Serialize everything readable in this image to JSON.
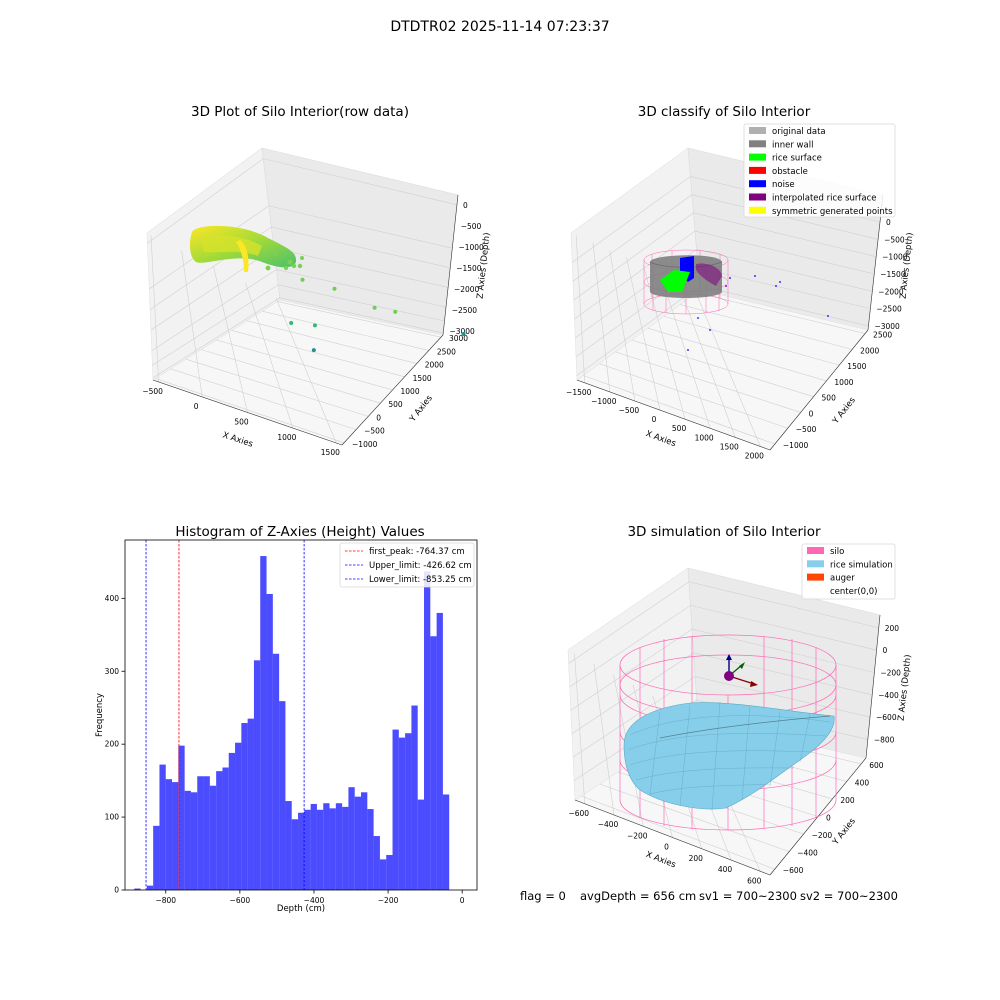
{
  "figure": {
    "suptitle": "DTDTR02 2025-11-14 07:23:37",
    "footer": {
      "flag": "flag = 0",
      "avg": "avgDepth = 656 cm",
      "sv1": "sv1 = 700~2300",
      "sv2": "sv2 = 700~2300"
    }
  },
  "chart_data": [
    {
      "type": "scatter",
      "title": "3D Plot of Silo Interior(row data)",
      "xlabel": "X Axies",
      "ylabel": "Y Axies",
      "zlabel": "Z Axies (Depth)",
      "x_ticks": [
        "−500",
        "0",
        "500",
        "1000",
        "1500"
      ],
      "y_ticks": [
        "−1000",
        "−500",
        "0",
        "500",
        "1000",
        "1500",
        "2000",
        "2500",
        "3000"
      ],
      "z_ticks": [
        "0",
        "−500",
        "−1000",
        "−1500",
        "−2000",
        "−2500",
        "−3000"
      ],
      "colormap": "viridis",
      "outlier_points": [
        {
          "x": 300,
          "y": 200,
          "z": -1000
        },
        {
          "x": 500,
          "y": 700,
          "z": -1300
        },
        {
          "x": 950,
          "y": 800,
          "z": -1500
        },
        {
          "x": 1050,
          "y": 1200,
          "z": -1700
        },
        {
          "x": 200,
          "y": 100,
          "z": -2300
        },
        {
          "x": 300,
          "y": 600,
          "z": -2500
        },
        {
          "x": 400,
          "y": 300,
          "z": -3000
        },
        {
          "x": 1200,
          "y": 3000,
          "z": -3000
        }
      ]
    },
    {
      "type": "scatter",
      "title": "3D classify of Silo Interior",
      "xlabel": "X Axies",
      "ylabel": "Y Axies",
      "zlabel": "Z Axies (Depth)",
      "x_ticks": [
        "−1500",
        "−1000",
        "−500",
        "0",
        "500",
        "1000",
        "1500",
        "2000"
      ],
      "y_ticks": [
        "−1000",
        "−500",
        "0",
        "500",
        "1000",
        "1500",
        "2000",
        "2500"
      ],
      "z_ticks": [
        "0",
        "−500",
        "−1000",
        "−1500",
        "−2000",
        "−2500",
        "−3000"
      ],
      "legend": [
        {
          "label": "original data",
          "color": "#b0b0b0"
        },
        {
          "label": "inner wall",
          "color": "#808080"
        },
        {
          "label": "rice surface",
          "color": "#00ff00"
        },
        {
          "label": "obstacle",
          "color": "#ff0000"
        },
        {
          "label": "noise",
          "color": "#0000ff"
        },
        {
          "label": "interpolated rice surface",
          "color": "#800080"
        },
        {
          "label": "symmetric generated points",
          "color": "#ffff00"
        }
      ]
    },
    {
      "type": "bar",
      "title": "Histogram of Z-Axies (Height) Values",
      "xlabel": "Depth (cm)",
      "ylabel": "Frequency",
      "xlim": [
        -910,
        40
      ],
      "ylim": [
        0,
        480
      ],
      "x_ticks": [
        -800,
        -600,
        -400,
        -200,
        0
      ],
      "y_ticks": [
        0,
        100,
        200,
        300,
        400
      ],
      "bar_color": "#0000ff",
      "bin_edges": [
        -885,
        -868,
        -851,
        -834,
        -817,
        -800,
        -783,
        -766,
        -749,
        -732,
        -715,
        -698,
        -681,
        -664,
        -647,
        -630,
        -613,
        -596,
        -579,
        -562,
        -545,
        -528,
        -511,
        -494,
        -477,
        -460,
        -443,
        -426,
        -409,
        -392,
        -375,
        -358,
        -341,
        -324,
        -307,
        -290,
        -273,
        -256,
        -239,
        -222,
        -205,
        -188,
        -171,
        -154,
        -137,
        -120,
        -103,
        -86,
        -69,
        -52,
        -35,
        -18,
        -1
      ],
      "values": [
        2,
        0,
        6,
        88,
        172,
        152,
        148,
        198,
        136,
        134,
        156,
        156,
        143,
        163,
        168,
        188,
        202,
        229,
        235,
        315,
        458,
        406,
        324,
        259,
        122,
        97,
        106,
        110,
        118,
        110,
        119,
        112,
        119,
        114,
        141,
        128,
        134,
        111,
        74,
        42,
        48,
        220,
        209,
        215,
        253,
        124,
        437,
        348,
        380,
        131,
        0,
        0
      ],
      "lines": [
        {
          "name": "first_peak: -764.37 cm",
          "x": -764.37,
          "color": "#ff0000"
        },
        {
          "name": "Upper_limit: -426.62 cm",
          "x": -426.62,
          "color": "#0000ff"
        },
        {
          "name": "Lower_limit: -853.25 cm",
          "x": -853.25,
          "color": "#0000ff"
        }
      ]
    },
    {
      "type": "scatter",
      "title": "3D simulation of Silo Interior",
      "xlabel": "X Axies",
      "ylabel": "Y Axies",
      "zlabel": "Z Axies (Depth)",
      "x_ticks": [
        "−600",
        "−400",
        "−200",
        "0",
        "200",
        "400",
        "600"
      ],
      "y_ticks": [
        "−600",
        "−400",
        "−200",
        "0",
        "200",
        "400",
        "600"
      ],
      "z_ticks": [
        "200",
        "0",
        "−200",
        "−400",
        "−600",
        "−800"
      ],
      "legend": [
        {
          "label": "silo",
          "color": "#ff69b4"
        },
        {
          "label": "rice simulation",
          "color": "#87ceeb"
        },
        {
          "label": "auger",
          "color": "#ff4500"
        },
        {
          "label": "center(0,0)",
          "color": "#ffffff"
        }
      ]
    }
  ]
}
